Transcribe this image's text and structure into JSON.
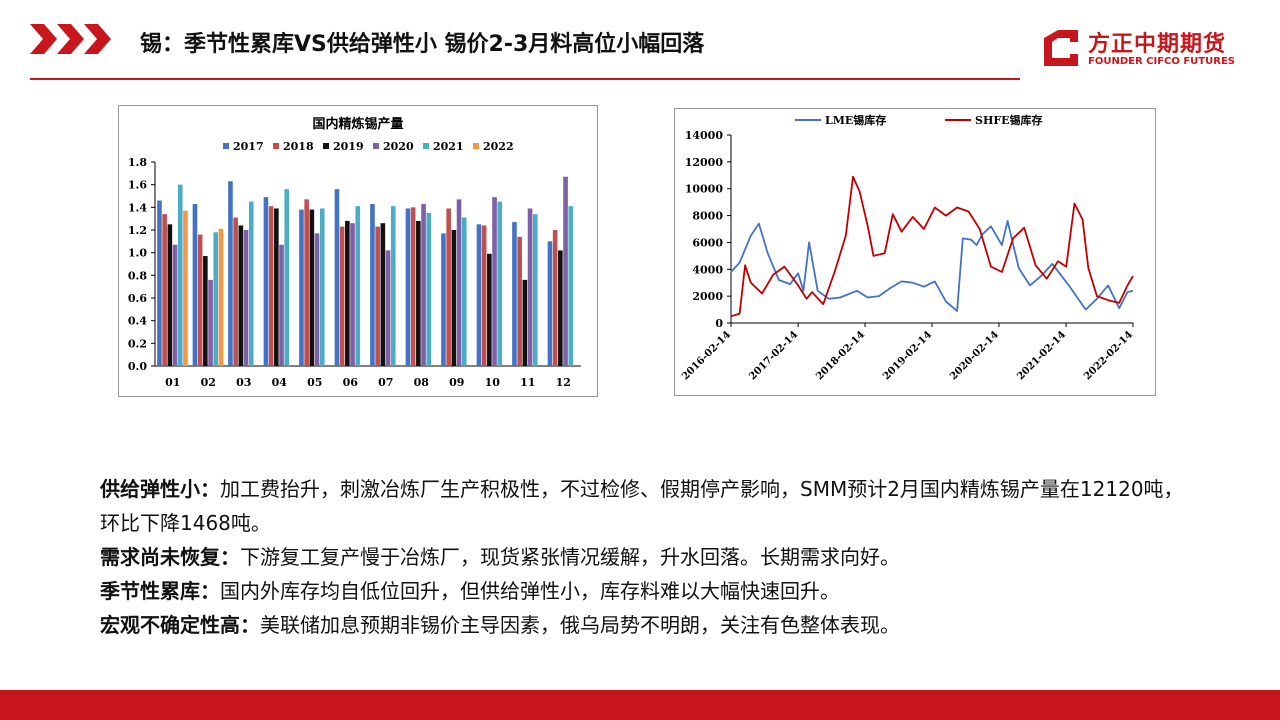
{
  "header": {
    "title": "锡：季节性累库VS供给弹性小 锡价2-3月料高位小幅回落",
    "logo_cn": "方正中期期货",
    "logo_en": "FOUNDER CIFCO FUTURES"
  },
  "colors": {
    "accent": "#c8161d"
  },
  "chart_data": [
    {
      "type": "bar",
      "title": "国内精炼锡产量",
      "categories": [
        "01",
        "02",
        "03",
        "04",
        "05",
        "06",
        "07",
        "08",
        "09",
        "10",
        "11",
        "12"
      ],
      "ylim": [
        0,
        1.8
      ],
      "yticks": [
        "0.0",
        "0.2",
        "0.4",
        "0.6",
        "0.8",
        "1.0",
        "1.2",
        "1.4",
        "1.6",
        "1.8"
      ],
      "legend_position": "top",
      "grid": false,
      "series": [
        {
          "name": "2017",
          "color": "#4472c4",
          "values": [
            1.46,
            1.43,
            1.63,
            1.49,
            1.38,
            1.56,
            1.43,
            1.39,
            1.17,
            1.25,
            1.27,
            1.1
          ]
        },
        {
          "name": "2018",
          "color": "#c0504d",
          "values": [
            1.34,
            1.16,
            1.31,
            1.41,
            1.47,
            1.23,
            1.23,
            1.4,
            1.39,
            1.24,
            1.14,
            1.2
          ]
        },
        {
          "name": "2019",
          "color": "#111111",
          "values": [
            1.25,
            0.97,
            1.24,
            1.39,
            1.38,
            1.28,
            1.26,
            1.28,
            1.2,
            0.99,
            0.76,
            1.02
          ]
        },
        {
          "name": "2020",
          "color": "#7f5fa5",
          "values": [
            1.07,
            0.76,
            1.2,
            1.07,
            1.17,
            1.26,
            1.02,
            1.43,
            1.47,
            1.49,
            1.39,
            1.67
          ]
        },
        {
          "name": "2021",
          "color": "#4bacc6",
          "values": [
            1.6,
            1.18,
            1.45,
            1.56,
            1.39,
            1.41,
            1.41,
            1.35,
            1.31,
            1.45,
            1.34,
            1.41
          ]
        },
        {
          "name": "2022",
          "color": "#f79646",
          "values": [
            1.37,
            1.21,
            null,
            null,
            null,
            null,
            null,
            null,
            null,
            null,
            null,
            null
          ]
        }
      ]
    },
    {
      "type": "line",
      "ylim": [
        0,
        14000
      ],
      "yticks": [
        "0",
        "2000",
        "4000",
        "6000",
        "8000",
        "10000",
        "12000",
        "14000"
      ],
      "xticks": [
        "2016-02-14",
        "2017-02-14",
        "2018-02-14",
        "2019-02-14",
        "2020-02-14",
        "2021-02-14",
        "2022-02-14"
      ],
      "legend_position": "top",
      "grid": false,
      "series": [
        {
          "name": "LME锡库存",
          "color": "#4472c4",
          "x": [
            "2016-02-14",
            "2016-04-01",
            "2016-06-01",
            "2016-07-15",
            "2016-09-01",
            "2016-11-01",
            "2017-01-01",
            "2017-02-14",
            "2017-03-15",
            "2017-04-15",
            "2017-06-01",
            "2017-08-01",
            "2017-10-01",
            "2018-01-01",
            "2018-03-01",
            "2018-05-01",
            "2018-07-01",
            "2018-09-01",
            "2018-11-01",
            "2019-01-01",
            "2019-03-01",
            "2019-05-01",
            "2019-07-01",
            "2019-08-01",
            "2019-09-15",
            "2019-10-15",
            "2019-11-15",
            "2020-01-01",
            "2020-03-01",
            "2020-04-01",
            "2020-06-01",
            "2020-08-01",
            "2020-10-01",
            "2020-12-01",
            "2021-01-15",
            "2021-03-01",
            "2021-04-01",
            "2021-06-01",
            "2021-08-01",
            "2021-10-01",
            "2021-12-01",
            "2022-01-15",
            "2022-02-14"
          ],
          "y": [
            3800,
            4500,
            6500,
            7400,
            5200,
            3200,
            2900,
            3700,
            2400,
            6000,
            2400,
            1800,
            1900,
            2400,
            1900,
            2000,
            2600,
            3100,
            3000,
            2700,
            3100,
            1600,
            900,
            6300,
            6200,
            5800,
            6600,
            7200,
            5800,
            7600,
            4100,
            2800,
            3500,
            4400,
            3600,
            2800,
            2200,
            1000,
            1800,
            2800,
            1100,
            2300,
            2400
          ]
        },
        {
          "name": "SHFE锡库存",
          "color": "#c00000",
          "x": [
            "2016-02-14",
            "2016-04-01",
            "2016-05-01",
            "2016-06-01",
            "2016-08-01",
            "2016-10-01",
            "2016-12-01",
            "2017-02-14",
            "2017-04-01",
            "2017-05-01",
            "2017-07-01",
            "2017-09-01",
            "2017-11-01",
            "2017-12-10",
            "2018-01-15",
            "2018-03-01",
            "2018-04-01",
            "2018-06-01",
            "2018-07-15",
            "2018-09-01",
            "2018-11-01",
            "2019-01-01",
            "2019-03-01",
            "2019-05-01",
            "2019-07-01",
            "2019-09-01",
            "2019-11-01",
            "2020-01-01",
            "2020-03-01",
            "2020-05-01",
            "2020-07-01",
            "2020-09-01",
            "2020-11-01",
            "2021-01-01",
            "2021-02-15",
            "2021-04-01",
            "2021-05-15",
            "2021-06-15",
            "2021-08-01",
            "2021-10-01",
            "2021-12-01",
            "2022-01-15",
            "2022-02-14"
          ],
          "y": [
            500,
            700,
            4300,
            3000,
            2200,
            3600,
            4200,
            2800,
            1800,
            2300,
            1400,
            3800,
            6500,
            10900,
            9800,
            7200,
            5000,
            5200,
            8100,
            6800,
            7900,
            7000,
            8600,
            8000,
            8600,
            8300,
            7000,
            4200,
            3800,
            6300,
            7100,
            4300,
            3300,
            4600,
            4200,
            8900,
            7700,
            4100,
            2000,
            1700,
            1500,
            2800,
            3500
          ]
        }
      ]
    }
  ],
  "bullets": [
    {
      "label": "供给弹性小：",
      "text": "加工费抬升，刺激冶炼厂生产积极性，不过检修、假期停产影响，SMM预计2月国内精炼锡产量在12120吨，环比下降1468吨。"
    },
    {
      "label": "需求尚未恢复：",
      "text": "下游复工复产慢于冶炼厂，现货紧张情况缓解，升水回落。长期需求向好。"
    },
    {
      "label": "季节性累库：",
      "text": "国内外库存均自低位回升，但供给弹性小，库存料难以大幅快速回升。"
    },
    {
      "label": "宏观不确定性高：",
      "text": "美联储加息预期非锡价主导因素，俄乌局势不明朗，关注有色整体表现。"
    }
  ]
}
